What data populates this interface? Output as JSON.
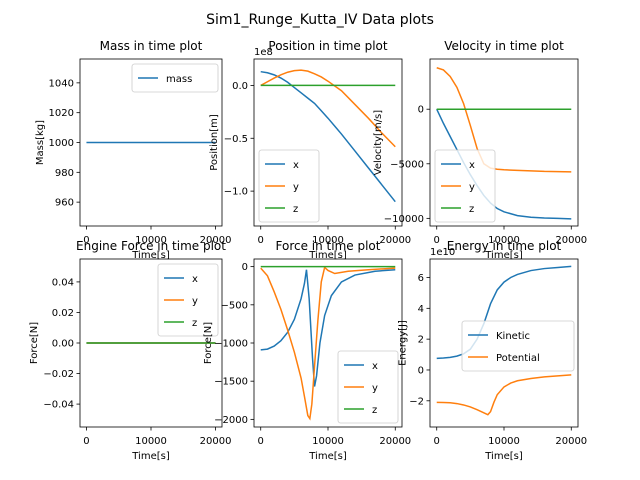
{
  "figure": {
    "title": "Sim1_Runge_Kutta_IV Data plots"
  },
  "colors": {
    "blue": "#1f77b4",
    "orange": "#ff7f0e",
    "green": "#2ca02c"
  },
  "chart_data": [
    {
      "type": "line",
      "title": "Mass in time plot",
      "xlabel": "Time[s]",
      "ylabel": "Mass[kg]",
      "xlim": [
        -1000,
        21000
      ],
      "ylim": [
        944,
        1056
      ],
      "xticks": [
        0,
        10000,
        20000
      ],
      "yticks": [
        960,
        980,
        1000,
        1020,
        1040
      ],
      "ytick_labels": [
        "960",
        "980",
        "1000",
        "1020",
        "1040"
      ],
      "offset_text": "",
      "legend": "top-right",
      "series": [
        {
          "name": "mass",
          "color": "#1f77b4",
          "x": [
            0,
            20000
          ],
          "y": [
            1000,
            1000
          ]
        }
      ]
    },
    {
      "type": "line",
      "title": "Position in time plot",
      "xlabel": "Time[s]",
      "ylabel": "Position[m]",
      "xlim": [
        -1000,
        21000
      ],
      "ylim": [
        -1.33,
        0.25
      ],
      "xticks": [
        0,
        10000,
        20000
      ],
      "yticks": [
        -1.0,
        -0.5,
        0.0
      ],
      "ytick_labels": [
        "−1.0",
        "−0.5",
        "0.0"
      ],
      "offset_text": "1e8",
      "legend": "bottom-left",
      "series": [
        {
          "name": "x",
          "color": "#1f77b4",
          "x": [
            0,
            1000,
            2000,
            3000,
            4000,
            5000,
            6000,
            7000,
            8000,
            9000,
            10000,
            12000,
            14000,
            16000,
            18000,
            20000
          ],
          "y": [
            0.13,
            0.12,
            0.1,
            0.07,
            0.03,
            -0.02,
            -0.07,
            -0.12,
            -0.17,
            -0.24,
            -0.31,
            -0.46,
            -0.62,
            -0.78,
            -0.94,
            -1.1
          ]
        },
        {
          "name": "y",
          "color": "#ff7f0e",
          "x": [
            0,
            1000,
            2000,
            3000,
            4000,
            5000,
            6000,
            7000,
            8000,
            9000,
            10000,
            12000,
            14000,
            16000,
            18000,
            20000
          ],
          "y": [
            0.0,
            0.035,
            0.07,
            0.1,
            0.125,
            0.14,
            0.145,
            0.135,
            0.11,
            0.08,
            0.04,
            -0.05,
            -0.18,
            -0.31,
            -0.45,
            -0.58
          ]
        },
        {
          "name": "z",
          "color": "#2ca02c",
          "x": [
            0,
            20000
          ],
          "y": [
            0.0,
            0.0
          ]
        }
      ]
    },
    {
      "type": "line",
      "title": "Velocity in time plot",
      "xlabel": "Time[s]",
      "ylabel": "Velocity[m/s]",
      "xlim": [
        -1000,
        21000
      ],
      "ylim": [
        -10700,
        4600
      ],
      "xticks": [
        0,
        10000,
        20000
      ],
      "yticks": [
        -10000,
        -5000,
        0
      ],
      "ytick_labels": [
        "−10000",
        "−5000",
        "0"
      ],
      "offset_text": "",
      "legend": "bottom-left",
      "series": [
        {
          "name": "x",
          "color": "#1f77b4",
          "x": [
            0,
            1000,
            2000,
            3000,
            4000,
            5000,
            6000,
            7000,
            8000,
            9000,
            10000,
            12000,
            14000,
            16000,
            18000,
            20000
          ],
          "y": [
            0,
            -1300,
            -2500,
            -3700,
            -4900,
            -6000,
            -7000,
            -7900,
            -8600,
            -9100,
            -9400,
            -9750,
            -9900,
            -9970,
            -10000,
            -10050
          ]
        },
        {
          "name": "y",
          "color": "#ff7f0e",
          "x": [
            0,
            1000,
            2000,
            3000,
            4000,
            5000,
            6000,
            7000,
            8000,
            9000,
            10000,
            12000,
            14000,
            16000,
            18000,
            20000
          ],
          "y": [
            3800,
            3600,
            3000,
            2000,
            500,
            -1500,
            -3600,
            -5000,
            -5400,
            -5500,
            -5550,
            -5600,
            -5650,
            -5700,
            -5720,
            -5740
          ]
        },
        {
          "name": "z",
          "color": "#2ca02c",
          "x": [
            0,
            20000
          ],
          "y": [
            0,
            0
          ]
        }
      ]
    },
    {
      "type": "line",
      "title": "Engine Force in time plot",
      "xlabel": "Time[s]",
      "ylabel": "Force[N]",
      "xlim": [
        -1000,
        21000
      ],
      "ylim": [
        -0.055,
        0.055
      ],
      "xticks": [
        0,
        10000,
        20000
      ],
      "yticks": [
        -0.04,
        -0.02,
        0.0,
        0.02,
        0.04
      ],
      "ytick_labels": [
        "−0.04",
        "−0.02",
        "0.00",
        "0.02",
        "0.04"
      ],
      "offset_text": "",
      "legend": "top-right",
      "series": [
        {
          "name": "x",
          "color": "#1f77b4",
          "x": [
            0,
            20000
          ],
          "y": [
            0,
            0
          ]
        },
        {
          "name": "y",
          "color": "#ff7f0e",
          "x": [
            0,
            20000
          ],
          "y": [
            0,
            0
          ]
        },
        {
          "name": "z",
          "color": "#2ca02c",
          "x": [
            0,
            20000
          ],
          "y": [
            0,
            0
          ]
        }
      ]
    },
    {
      "type": "line",
      "title": "Force in time plot",
      "xlabel": "Time[s]",
      "ylabel": "Force[N]",
      "xlim": [
        -1000,
        21000
      ],
      "ylim": [
        -2100,
        100
      ],
      "xticks": [
        0,
        10000,
        20000
      ],
      "yticks": [
        -2000,
        -1500,
        -1000,
        -500,
        0
      ],
      "ytick_labels": [
        "−2000",
        "−1500",
        "−1000",
        "−500",
        "0"
      ],
      "offset_text": "",
      "legend": "bottom-right",
      "series": [
        {
          "name": "x",
          "color": "#1f77b4",
          "x": [
            0,
            1000,
            2000,
            3000,
            4000,
            5000,
            6000,
            6500,
            6800,
            7200,
            7700,
            8000,
            8300,
            8800,
            9500,
            10500,
            12000,
            14000,
            17000,
            20000
          ],
          "y": [
            -1090,
            -1080,
            -1040,
            -970,
            -860,
            -690,
            -420,
            -220,
            -40,
            -420,
            -1200,
            -1570,
            -1430,
            -1000,
            -640,
            -380,
            -200,
            -110,
            -60,
            -40
          ]
        },
        {
          "name": "y",
          "color": "#ff7f0e",
          "x": [
            0,
            1000,
            2000,
            3000,
            4000,
            5000,
            6000,
            6500,
            7000,
            7300,
            7600,
            8000,
            8500,
            9000,
            9500,
            10000,
            11000,
            13000,
            16000,
            20000
          ],
          "y": [
            -20,
            -120,
            -330,
            -560,
            -830,
            -1120,
            -1460,
            -1700,
            -1950,
            -1990,
            -1800,
            -1300,
            -700,
            -200,
            -10,
            -50,
            -90,
            -60,
            -40,
            -20
          ]
        },
        {
          "name": "z",
          "color": "#2ca02c",
          "x": [
            0,
            20000
          ],
          "y": [
            0,
            0
          ]
        }
      ]
    },
    {
      "type": "line",
      "title": "Energy in time plot",
      "xlabel": "Time[s]",
      "ylabel": "Energy[J]",
      "xlim": [
        -1000,
        21000
      ],
      "ylim": [
        -3.7,
        7.2
      ],
      "xticks": [
        0,
        10000,
        20000
      ],
      "yticks": [
        -2,
        0,
        2,
        4,
        6
      ],
      "ytick_labels": [
        "−2",
        "0",
        "2",
        "4",
        "6"
      ],
      "offset_text": "1e10",
      "legend": "center-right",
      "series": [
        {
          "name": "Kinetic",
          "color": "#1f77b4",
          "x": [
            0,
            1000,
            2000,
            3000,
            4000,
            5000,
            6000,
            7000,
            8000,
            9000,
            10000,
            11000,
            12000,
            14000,
            16000,
            18000,
            20000
          ],
          "y": [
            0.75,
            0.78,
            0.82,
            0.9,
            1.05,
            1.35,
            2.0,
            3.0,
            4.3,
            5.2,
            5.7,
            6.0,
            6.2,
            6.45,
            6.58,
            6.65,
            6.72
          ]
        },
        {
          "name": "Potential",
          "color": "#ff7f0e",
          "x": [
            0,
            1000,
            2000,
            3000,
            4000,
            5000,
            6000,
            7000,
            7600,
            8000,
            8500,
            9000,
            10000,
            11000,
            12000,
            14000,
            16000,
            18000,
            20000
          ],
          "y": [
            -2.1,
            -2.11,
            -2.13,
            -2.18,
            -2.27,
            -2.4,
            -2.58,
            -2.78,
            -2.9,
            -2.7,
            -2.1,
            -1.6,
            -1.1,
            -0.85,
            -0.7,
            -0.55,
            -0.45,
            -0.38,
            -0.32
          ]
        }
      ]
    }
  ]
}
